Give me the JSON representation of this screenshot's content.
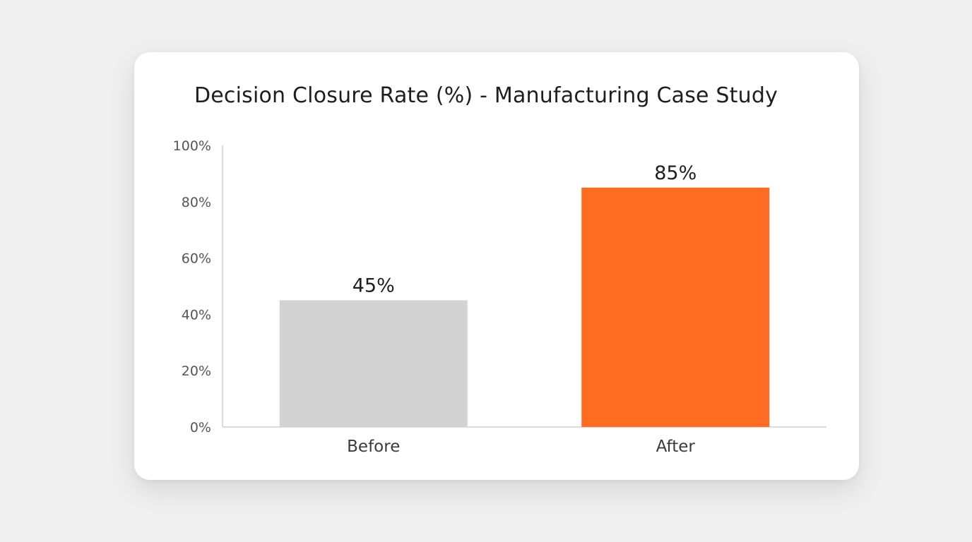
{
  "chart_data": {
    "type": "bar",
    "title": "Decision Closure Rate (%) - Manufacturing Case Study",
    "xlabel": "",
    "ylabel": "",
    "categories": [
      "Before",
      "After"
    ],
    "values": [
      45,
      85
    ],
    "data_labels": [
      "45%",
      "85%"
    ],
    "ylim": [
      0,
      100
    ],
    "yticks": [
      0,
      20,
      40,
      60,
      80,
      100
    ],
    "ytick_labels": [
      "0%",
      "20%",
      "40%",
      "60%",
      "80%",
      "100%"
    ],
    "colors": [
      "#d3d3d3",
      "#fd6c20"
    ],
    "grid": false,
    "legend": "none"
  }
}
